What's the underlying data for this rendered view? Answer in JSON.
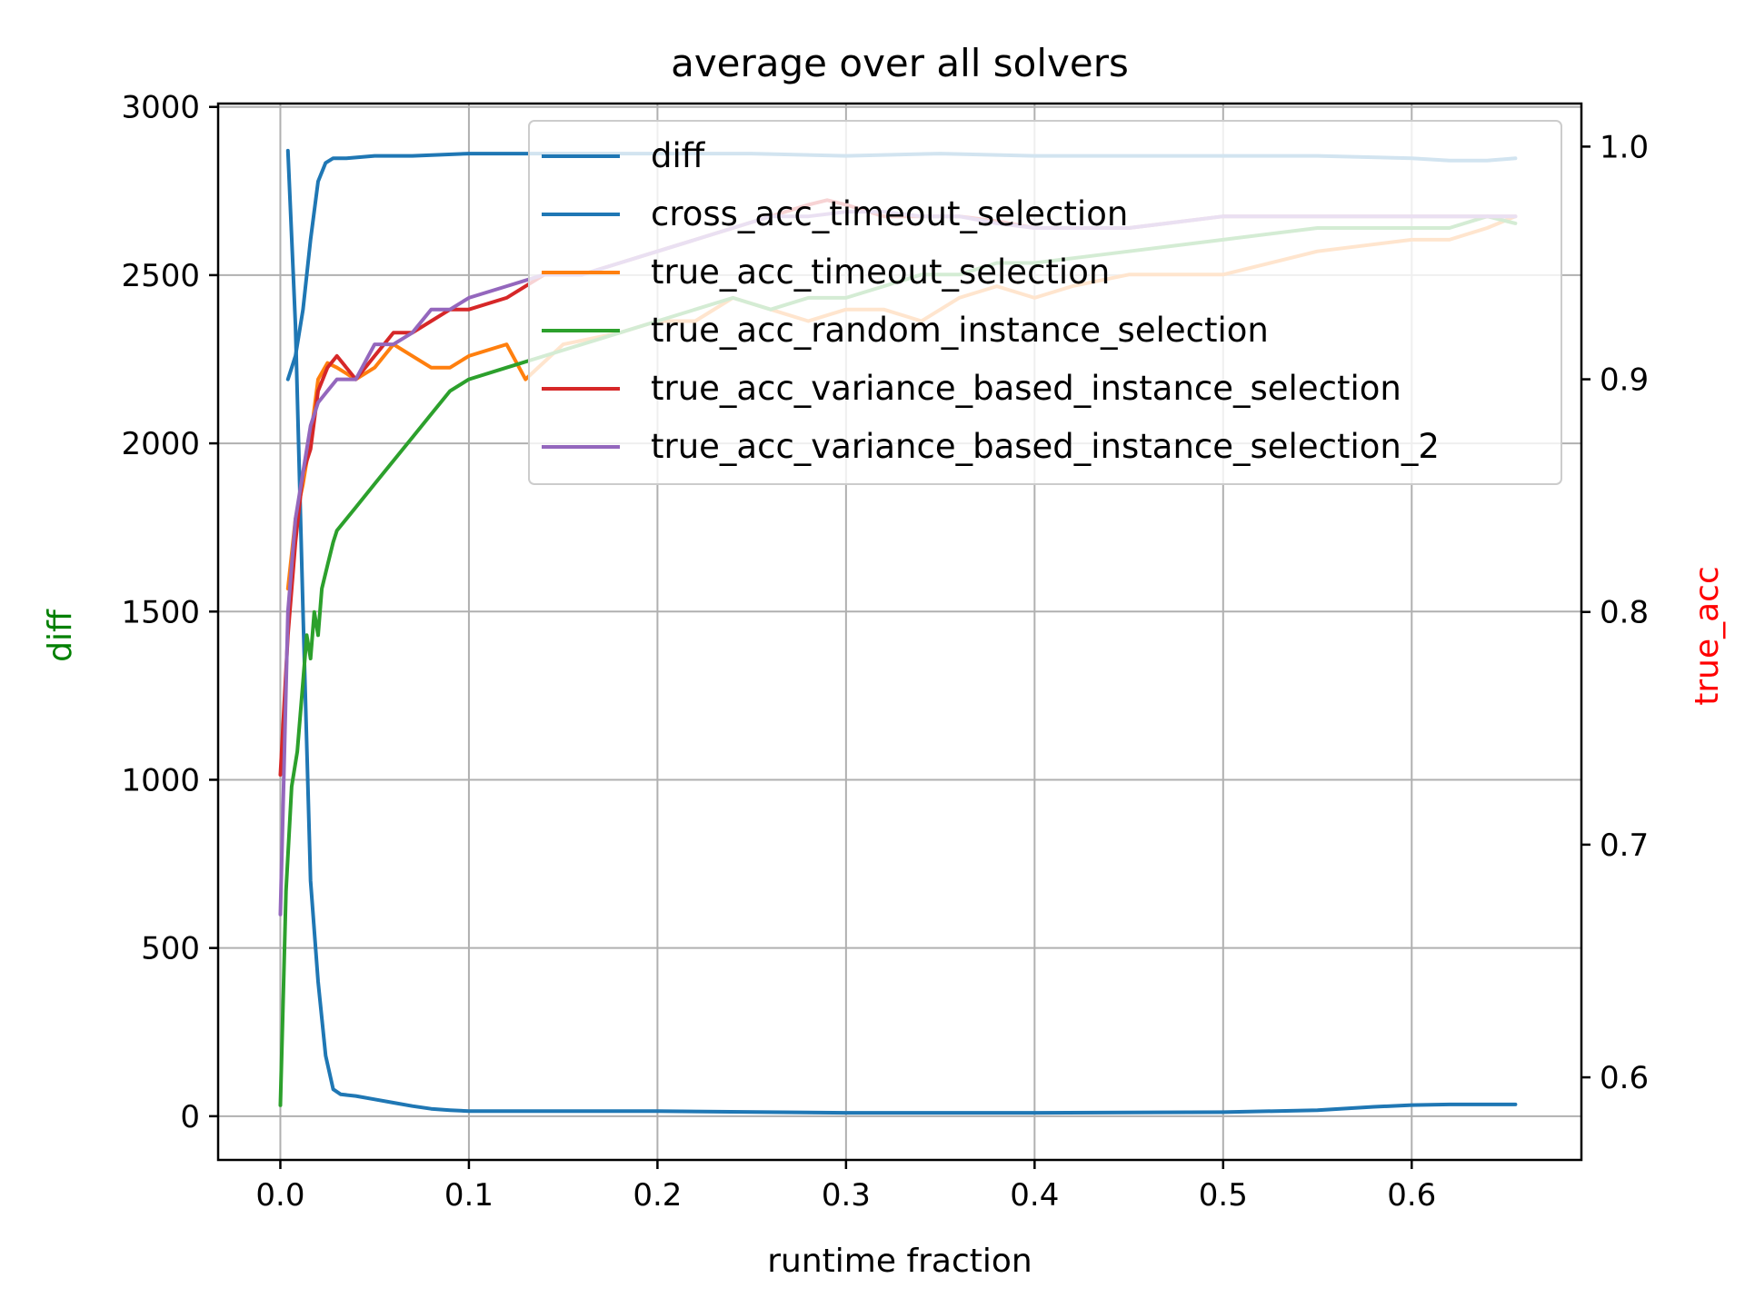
{
  "chart_data": {
    "type": "line",
    "title": "average over all solvers",
    "xlabel": "runtime fraction",
    "ylabel_left": "diff",
    "ylabel_left_color": "#008000",
    "ylabel_right": "true_acc",
    "ylabel_right_color": "#ff0000",
    "xlim": [
      -0.033,
      0.69
    ],
    "ylim_left": [
      -130,
      3010
    ],
    "ylim_right": [
      0.5645,
      1.0185
    ],
    "xticks": [
      0.0,
      0.1,
      0.2,
      0.3,
      0.4,
      0.5,
      0.6
    ],
    "xtick_labels": [
      "0.0",
      "0.1",
      "0.2",
      "0.3",
      "0.4",
      "0.5",
      "0.6"
    ],
    "yticks_left": [
      0,
      500,
      1000,
      1500,
      2000,
      2500,
      3000
    ],
    "ytick_labels_left": [
      "0",
      "500",
      "1000",
      "1500",
      "2000",
      "2500",
      "3000"
    ],
    "yticks_right": [
      0.6,
      0.7,
      0.8,
      0.9,
      1.0
    ],
    "ytick_labels_right": [
      "0.6",
      "0.7",
      "0.8",
      "0.9",
      "1.0"
    ],
    "grid": true,
    "legend_position": "upper right",
    "series": [
      {
        "name": "diff",
        "axis": "left",
        "color": "#1f77b4",
        "x": [
          0.004,
          0.008,
          0.012,
          0.016,
          0.02,
          0.024,
          0.028,
          0.032,
          0.04,
          0.05,
          0.06,
          0.07,
          0.08,
          0.09,
          0.1,
          0.15,
          0.2,
          0.3,
          0.4,
          0.5,
          0.55,
          0.58,
          0.6,
          0.62,
          0.64,
          0.655
        ],
        "y": [
          2870,
          2350,
          1500,
          700,
          400,
          180,
          80,
          65,
          60,
          50,
          40,
          30,
          22,
          18,
          15,
          15,
          15,
          10,
          10,
          12,
          18,
          28,
          33,
          35,
          35,
          35
        ]
      },
      {
        "name": "cross_acc_timeout_selection",
        "axis": "right",
        "color": "#1f77b4",
        "x": [
          0.004,
          0.008,
          0.012,
          0.016,
          0.02,
          0.024,
          0.028,
          0.035,
          0.05,
          0.07,
          0.1,
          0.15,
          0.2,
          0.25,
          0.3,
          0.35,
          0.4,
          0.45,
          0.5,
          0.55,
          0.6,
          0.62,
          0.64,
          0.655
        ],
        "y": [
          0.9,
          0.91,
          0.93,
          0.96,
          0.985,
          0.993,
          0.995,
          0.995,
          0.996,
          0.996,
          0.997,
          0.997,
          0.997,
          0.997,
          0.996,
          0.997,
          0.996,
          0.996,
          0.996,
          0.996,
          0.995,
          0.994,
          0.994,
          0.995
        ]
      },
      {
        "name": "true_acc_timeout_selection",
        "axis": "right",
        "color": "#ff7f0e",
        "x": [
          0.004,
          0.008,
          0.012,
          0.016,
          0.02,
          0.025,
          0.03,
          0.04,
          0.05,
          0.06,
          0.07,
          0.08,
          0.09,
          0.1,
          0.12,
          0.13,
          0.15,
          0.18,
          0.2,
          0.22,
          0.24,
          0.26,
          0.28,
          0.3,
          0.32,
          0.34,
          0.36,
          0.38,
          0.4,
          0.42,
          0.45,
          0.5,
          0.55,
          0.6,
          0.62,
          0.64,
          0.655
        ],
        "y": [
          0.81,
          0.84,
          0.855,
          0.875,
          0.9,
          0.907,
          0.905,
          0.9,
          0.905,
          0.915,
          0.91,
          0.905,
          0.905,
          0.91,
          0.915,
          0.9,
          0.915,
          0.92,
          0.925,
          0.925,
          0.935,
          0.93,
          0.925,
          0.93,
          0.93,
          0.925,
          0.935,
          0.94,
          0.935,
          0.94,
          0.945,
          0.945,
          0.955,
          0.96,
          0.96,
          0.965,
          0.97
        ]
      },
      {
        "name": "true_acc_random_instance_selection",
        "axis": "right",
        "color": "#2ca02c",
        "x": [
          0.0,
          0.003,
          0.006,
          0.009,
          0.012,
          0.014,
          0.016,
          0.018,
          0.02,
          0.022,
          0.025,
          0.028,
          0.03,
          0.04,
          0.05,
          0.06,
          0.07,
          0.08,
          0.09,
          0.1,
          0.12,
          0.14,
          0.16,
          0.18,
          0.2,
          0.22,
          0.24,
          0.26,
          0.28,
          0.3,
          0.32,
          0.34,
          0.36,
          0.38,
          0.4,
          0.45,
          0.5,
          0.55,
          0.6,
          0.62,
          0.64,
          0.655
        ],
        "y": [
          0.588,
          0.68,
          0.725,
          0.74,
          0.77,
          0.79,
          0.78,
          0.8,
          0.79,
          0.81,
          0.82,
          0.83,
          0.835,
          0.845,
          0.855,
          0.865,
          0.875,
          0.885,
          0.895,
          0.9,
          0.905,
          0.91,
          0.915,
          0.92,
          0.925,
          0.93,
          0.935,
          0.93,
          0.935,
          0.935,
          0.94,
          0.945,
          0.945,
          0.95,
          0.95,
          0.955,
          0.96,
          0.965,
          0.965,
          0.965,
          0.97,
          0.967
        ]
      },
      {
        "name": "true_acc_variance_based_instance_selection",
        "axis": "right",
        "color": "#d62728",
        "x": [
          0.0,
          0.004,
          0.008,
          0.012,
          0.016,
          0.02,
          0.025,
          0.03,
          0.04,
          0.05,
          0.06,
          0.07,
          0.08,
          0.09,
          0.1,
          0.12,
          0.14,
          0.16,
          0.18,
          0.2,
          0.22,
          0.24,
          0.26,
          0.28,
          0.29,
          0.3,
          0.32,
          0.34,
          0.36,
          0.38,
          0.4,
          0.45,
          0.5,
          0.55,
          0.6,
          0.62,
          0.64,
          0.655
        ],
        "y": [
          0.73,
          0.79,
          0.83,
          0.86,
          0.87,
          0.895,
          0.905,
          0.91,
          0.9,
          0.91,
          0.92,
          0.92,
          0.925,
          0.93,
          0.93,
          0.935,
          0.945,
          0.945,
          0.95,
          0.955,
          0.96,
          0.965,
          0.97,
          0.975,
          0.977,
          0.975,
          0.97,
          0.97,
          0.97,
          0.968,
          0.965,
          0.965,
          0.97,
          0.97,
          0.97,
          0.97,
          0.97,
          0.97
        ]
      },
      {
        "name": "true_acc_variance_based_instance_selection_2",
        "axis": "right",
        "color": "#9467bd",
        "x": [
          0.0,
          0.004,
          0.008,
          0.012,
          0.016,
          0.02,
          0.025,
          0.03,
          0.04,
          0.05,
          0.06,
          0.07,
          0.08,
          0.09,
          0.1,
          0.12,
          0.14,
          0.16,
          0.18,
          0.2,
          0.22,
          0.24,
          0.26,
          0.28,
          0.3,
          0.32,
          0.34,
          0.36,
          0.38,
          0.4,
          0.45,
          0.5,
          0.55,
          0.6,
          0.62,
          0.64,
          0.655
        ],
        "y": [
          0.67,
          0.8,
          0.84,
          0.86,
          0.88,
          0.89,
          0.895,
          0.9,
          0.9,
          0.915,
          0.915,
          0.92,
          0.93,
          0.93,
          0.935,
          0.94,
          0.945,
          0.945,
          0.95,
          0.955,
          0.96,
          0.965,
          0.97,
          0.97,
          0.972,
          0.972,
          0.97,
          0.97,
          0.967,
          0.965,
          0.965,
          0.97,
          0.97,
          0.97,
          0.97,
          0.97,
          0.97
        ]
      }
    ]
  }
}
